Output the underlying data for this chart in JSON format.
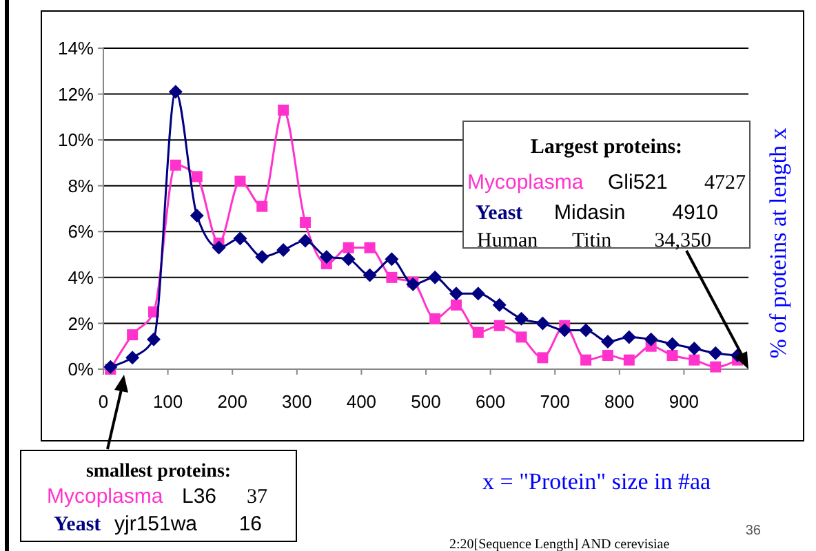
{
  "chart_data": {
    "type": "line",
    "xlabel": "x = \"Protein\" size in #aa",
    "ylabel": "% of proteins at length x",
    "x": [
      11,
      45,
      78,
      112,
      145,
      179,
      212,
      246,
      279,
      313,
      346,
      380,
      413,
      447,
      480,
      514,
      547,
      581,
      614,
      648,
      681,
      715,
      748,
      782,
      815,
      849,
      882,
      916,
      949,
      983
    ],
    "xlim": [
      0,
      1000
    ],
    "xticks": [
      0,
      100,
      200,
      300,
      400,
      500,
      600,
      700,
      800,
      900
    ],
    "ylim": [
      0,
      14
    ],
    "yticks": [
      {
        "value": 0,
        "label": "0%"
      },
      {
        "value": 2,
        "label": "2%"
      },
      {
        "value": 4,
        "label": "4%"
      },
      {
        "value": 6,
        "label": "6%"
      },
      {
        "value": 8,
        "label": "8%"
      },
      {
        "value": 10,
        "label": "10%"
      },
      {
        "value": 12,
        "label": "12%"
      },
      {
        "value": 14,
        "label": "14%"
      }
    ],
    "grid": "y",
    "legend": false,
    "series": [
      {
        "name": "Mycoplasma",
        "color": "#ff33cc",
        "marker": "square",
        "values": [
          0.0,
          1.5,
          2.5,
          8.9,
          8.4,
          5.5,
          8.2,
          7.1,
          11.3,
          6.4,
          4.6,
          5.3,
          5.3,
          4.0,
          3.8,
          2.2,
          2.8,
          1.6,
          1.9,
          1.4,
          0.5,
          1.9,
          0.4,
          0.6,
          0.4,
          1.0,
          0.6,
          0.4,
          0.1,
          0.4
        ]
      },
      {
        "name": "Yeast",
        "color": "#000080",
        "marker": "diamond",
        "values": [
          0.1,
          0.5,
          1.3,
          12.1,
          6.7,
          5.3,
          5.7,
          4.9,
          5.2,
          5.6,
          4.9,
          4.8,
          4.1,
          4.8,
          3.7,
          4.0,
          3.3,
          3.3,
          2.8,
          2.2,
          2.0,
          1.7,
          1.7,
          1.2,
          1.4,
          1.3,
          1.1,
          0.9,
          0.7,
          0.6
        ]
      }
    ],
    "annotations": [
      "Largest proteins:",
      "Gli521",
      "4727",
      "Midasin",
      "4910",
      "Human",
      "Titin",
      {
        "text": "34,350",
        "x": 1000,
        "y": 0
      },
      "smallest proteins:",
      "L36",
      "37",
      "yjr151wa",
      "16",
      "2:20[Sequence Length] AND cerevisiae",
      "36"
    ]
  }
}
